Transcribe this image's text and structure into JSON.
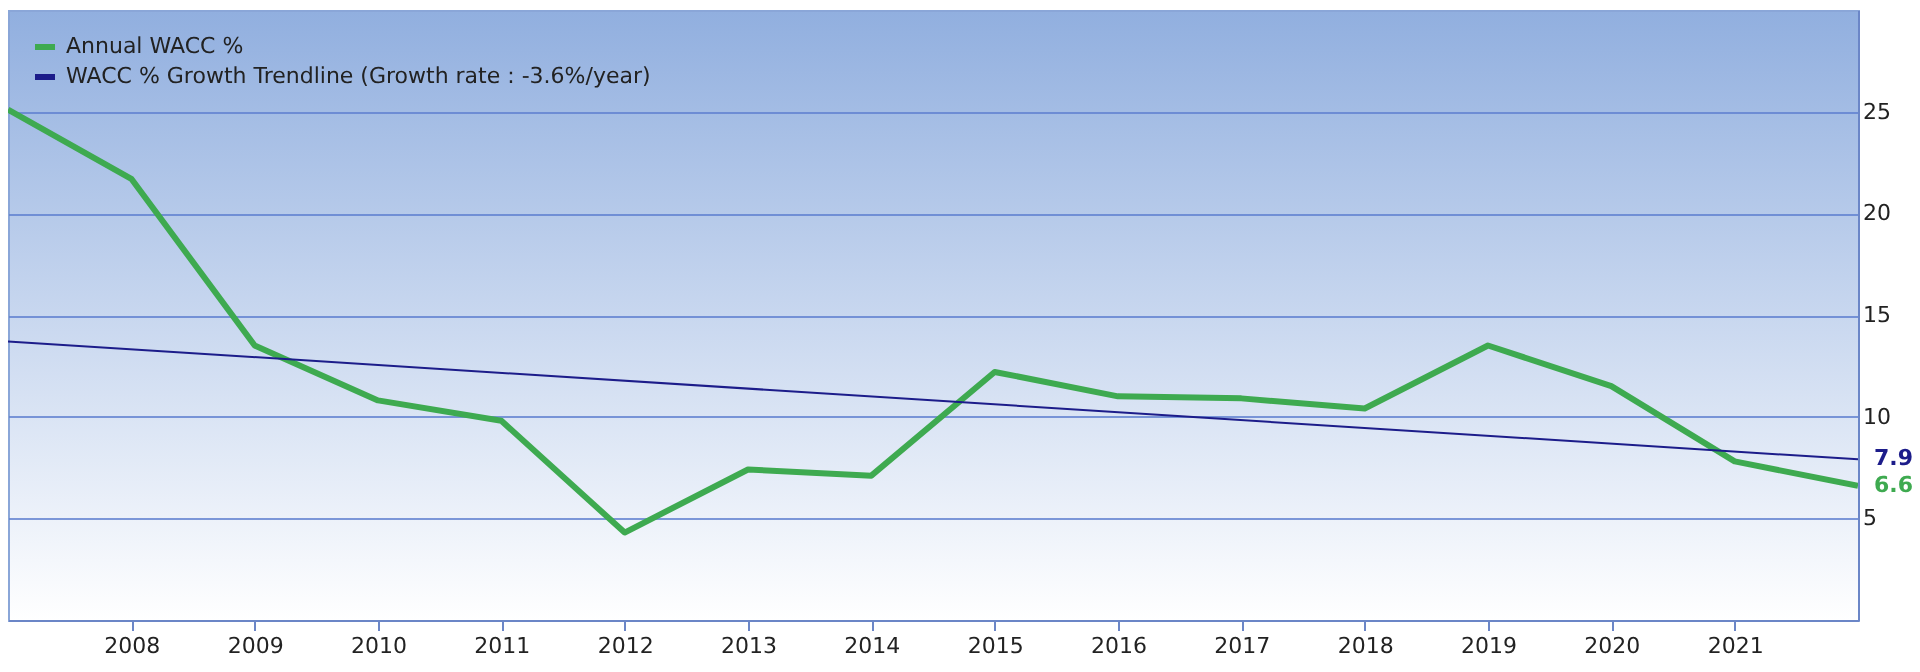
{
  "chart_data": {
    "type": "line",
    "x": [
      2007,
      2008,
      2009,
      2010,
      2011,
      2012,
      2013,
      2014,
      2015,
      2016,
      2017,
      2018,
      2019,
      2020,
      2021,
      2022
    ],
    "series": [
      {
        "name": "Annual WACC %",
        "color": "#3eaa50",
        "values": [
          25.1,
          21.7,
          13.5,
          10.8,
          9.8,
          4.3,
          7.4,
          7.1,
          12.2,
          11.0,
          10.9,
          10.4,
          13.5,
          11.5,
          7.8,
          6.6
        ],
        "value_labels": [
          null,
          null,
          null,
          null,
          null,
          null,
          null,
          null,
          null,
          null,
          null,
          null,
          null,
          null,
          null,
          "6.6"
        ]
      },
      {
        "name": "WACC % Growth Trendline (Growth rate : -3.6%/year)",
        "color": "#1c1c8a",
        "x": [
          2007,
          2022
        ],
        "values": [
          13.7,
          7.9
        ],
        "value_labels": [
          null,
          "7.9"
        ]
      }
    ],
    "xlim": [
      2007,
      2022
    ],
    "xticks": [
      2008,
      2009,
      2010,
      2011,
      2012,
      2013,
      2014,
      2015,
      2016,
      2017,
      2018,
      2019,
      2020,
      2021
    ],
    "ylim": [
      0,
      30
    ],
    "yticks": [
      5,
      10,
      15,
      20,
      25
    ],
    "grid": "y",
    "legend": "top left"
  }
}
